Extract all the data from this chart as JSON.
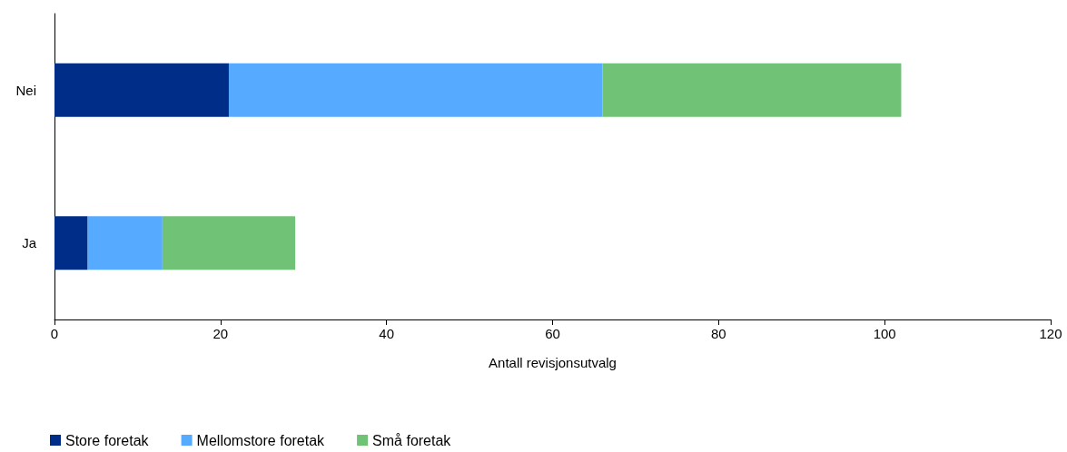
{
  "chart_data": {
    "type": "bar",
    "orientation": "horizontal",
    "stacked": true,
    "xlabel": "Antall revisjonsutvalg",
    "categories": [
      "Nei",
      "Ja"
    ],
    "series": [
      {
        "name": "Store foretak",
        "color": "#002d87",
        "values": [
          21,
          4
        ]
      },
      {
        "name": "Mellomstore foretak",
        "color": "#56aaff",
        "values": [
          45,
          9
        ]
      },
      {
        "name": "Små foretak",
        "color": "#70c276",
        "values": [
          36,
          16
        ]
      }
    ],
    "xlim": [
      0,
      120
    ],
    "xticks": [
      0,
      20,
      40,
      60,
      80,
      100,
      120
    ],
    "grid": false,
    "legend": "bottom left"
  }
}
